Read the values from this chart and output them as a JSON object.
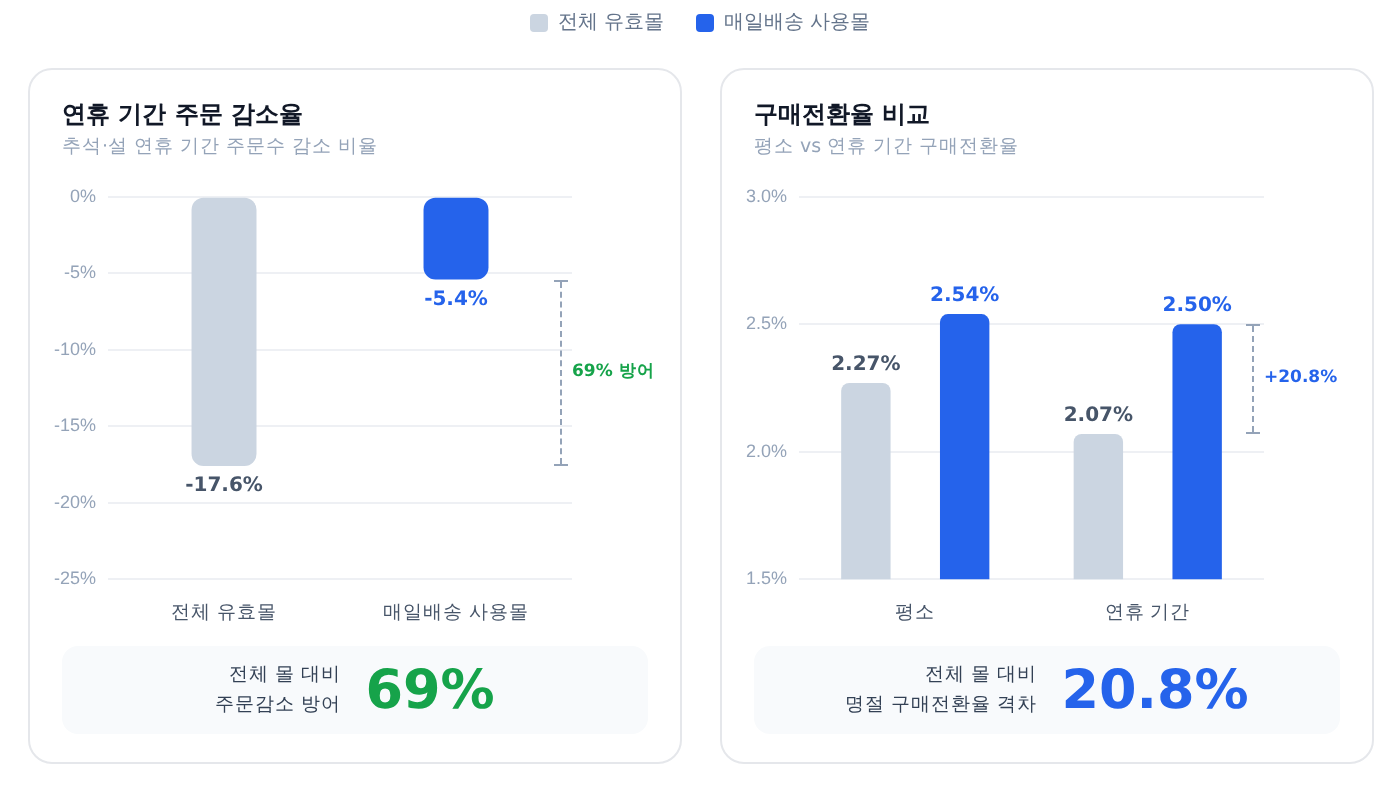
{
  "chart_data": [
    {
      "type": "bar",
      "title": "연휴 기간 주문 감소율",
      "subtitle": "추석·설 연휴 기간 주문수 감소 비율",
      "categories": [
        "전체 유효몰",
        "매일배송 사용몰"
      ],
      "values": [
        -17.6,
        -5.4
      ],
      "colors": [
        "#cbd5e1",
        "#2563eb"
      ],
      "value_labels": [
        "-17.6%",
        "-5.4%"
      ],
      "ylim": [
        -25,
        0
      ],
      "yticks": [
        {
          "value": 0,
          "label": "0%"
        },
        {
          "value": -5,
          "label": "-5%"
        },
        {
          "value": -10,
          "label": "-10%"
        },
        {
          "value": -15,
          "label": "-15%"
        },
        {
          "value": -20,
          "label": "-20%"
        },
        {
          "value": -25,
          "label": "-25%"
        }
      ],
      "grid": "y",
      "annotations": [
        "69% 방어",
        "전체 몰 대비\n주문감소 방어",
        "69%"
      ]
    },
    {
      "type": "bar",
      "title": "구매전환율 비교",
      "subtitle": "평소 vs 연휴 기간 구매전환율",
      "categories": [
        "평소",
        "연휴 기간"
      ],
      "series": [
        {
          "name": "전체 유효몰",
          "color": "#cbd5e1",
          "values": [
            2.27,
            2.07
          ],
          "value_labels": [
            "2.27%",
            "2.07%"
          ]
        },
        {
          "name": "매일배송 사용몰",
          "color": "#2563eb",
          "values": [
            2.54,
            2.5
          ],
          "value_labels": [
            "2.54%",
            "2.50%"
          ]
        }
      ],
      "ylim": [
        1.5,
        3.0
      ],
      "yticks": [
        {
          "value": 1.5,
          "label": "1.5%"
        },
        {
          "value": 2.0,
          "label": "2.0%"
        },
        {
          "value": 2.5,
          "label": "2.5%"
        },
        {
          "value": 3.0,
          "label": "3.0%"
        }
      ],
      "grid": "y",
      "legend": "top",
      "annotations": [
        "+20.8%",
        "전체 몰 대비\n명절 구매전환율 격차",
        "20.8%"
      ]
    }
  ]
}
